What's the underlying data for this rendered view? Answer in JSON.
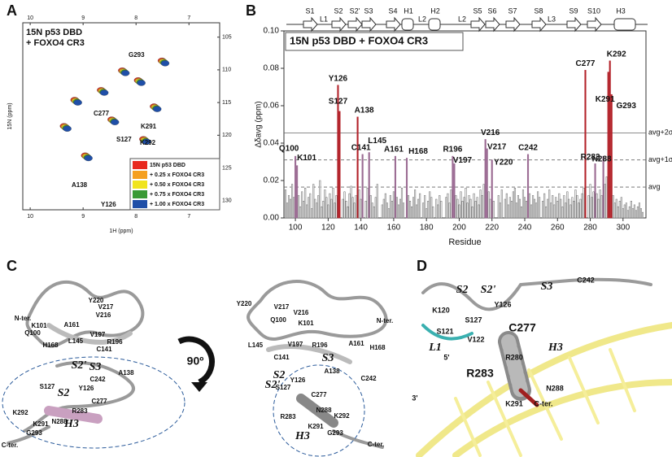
{
  "panel_letters": [
    "A",
    "B",
    "C",
    "D"
  ],
  "chart_data": [
    {
      "type": "scatter",
      "title_lines": [
        "15N p53 DBD",
        "+ FOXO4 CR3"
      ],
      "xlabel": "1H (ppm)",
      "ylabel": "15N (ppm)",
      "xlim": [
        10.14,
        6.42
      ],
      "ylim": [
        102.8,
        131.4
      ],
      "xticks": [
        10,
        9,
        8,
        7
      ],
      "yticks": [
        105,
        110,
        115,
        120,
        125,
        130
      ],
      "series": [
        {
          "name": "15N p53 DBD",
          "color": "#e8281e",
          "x": [
            8.26,
            7.96,
            7.51,
            8.66,
            9.16,
            8.46,
            7.86,
            9.36,
            8.96,
            7.66
          ],
          "y": [
            110.1,
            111.6,
            108.6,
            113.1,
            114.6,
            117.6,
            120.6,
            118.6,
            123.1,
            115.6
          ]
        },
        {
          "name": "+ 0.25 x FOXO4 CR3",
          "color": "#f5a020",
          "x": [
            8.245,
            7.945,
            7.495,
            8.645,
            9.145,
            8.445,
            7.845,
            9.345,
            8.945,
            7.645
          ],
          "y": [
            110.2,
            111.7,
            108.7,
            113.2,
            114.7,
            117.7,
            120.7,
            118.7,
            123.2,
            115.7
          ]
        },
        {
          "name": "+ 0.50 x FOXO4 CR3",
          "color": "#f0e41e",
          "x": [
            8.23,
            7.93,
            7.48,
            8.63,
            9.13,
            8.43,
            7.83,
            9.33,
            8.93,
            7.63
          ],
          "y": [
            110.3,
            111.8,
            108.8,
            113.3,
            114.8,
            117.8,
            120.8,
            118.8,
            123.3,
            115.8
          ]
        },
        {
          "name": "+ 0.75 x FOXO4 CR3",
          "color": "#3a9a35",
          "x": [
            8.215,
            7.915,
            7.465,
            8.615,
            9.115,
            8.415,
            7.815,
            9.315,
            8.915,
            7.615
          ],
          "y": [
            110.4,
            111.9,
            108.9,
            113.4,
            114.9,
            117.9,
            120.9,
            118.9,
            123.4,
            115.9
          ]
        },
        {
          "name": "+ 1.00 x FOXO4 CR3",
          "color": "#1f4fa8",
          "x": [
            8.2,
            7.9,
            7.45,
            8.6,
            9.1,
            8.4,
            7.8,
            9.3,
            8.9,
            7.6
          ],
          "y": [
            110.5,
            112,
            109,
            113.5,
            115,
            118,
            121,
            119,
            123.5,
            116
          ]
        }
      ],
      "peak_labels": [
        "G293",
        "C277",
        "K291",
        "K292",
        "S127",
        "A138",
        "Y126"
      ]
    },
    {
      "type": "bar",
      "title": "15N p53 DBD + FOXO4 CR3",
      "xlabel": "Residue",
      "ylabel": "Δδavg (ppm)",
      "xlim": [
        93,
        314
      ],
      "ylim": [
        0,
        0.1
      ],
      "xticks": [
        100,
        120,
        140,
        160,
        180,
        200,
        220,
        240,
        260,
        280,
        300
      ],
      "yticks": [
        {
          "value": 0,
          "label": "0.00"
        },
        0.02,
        0.04,
        0.06,
        0.08,
        {
          "value": 0.1,
          "label": "0.10"
        }
      ],
      "color": "#f2f2f2",
      "x": [
        94,
        95,
        96,
        97,
        98,
        99,
        100,
        101,
        102,
        103,
        104,
        105,
        106,
        107,
        108,
        109,
        110,
        111,
        112,
        113,
        114,
        115,
        116,
        117,
        118,
        119,
        120,
        121,
        122,
        123,
        124,
        125,
        126,
        127,
        128,
        129,
        130,
        131,
        132,
        133,
        134,
        135,
        136,
        137,
        138,
        139,
        140,
        141,
        142,
        143,
        144,
        145,
        146,
        147,
        148,
        149,
        150,
        151,
        152,
        153,
        154,
        155,
        156,
        157,
        158,
        159,
        160,
        161,
        162,
        163,
        164,
        165,
        166,
        167,
        168,
        169,
        170,
        171,
        172,
        173,
        174,
        175,
        176,
        177,
        178,
        179,
        180,
        181,
        182,
        183,
        184,
        185,
        186,
        187,
        188,
        189,
        190,
        191,
        192,
        193,
        194,
        195,
        196,
        197,
        198,
        199,
        200,
        201,
        202,
        203,
        204,
        205,
        206,
        207,
        208,
        209,
        210,
        211,
        212,
        213,
        214,
        215,
        216,
        217,
        218,
        219,
        220,
        221,
        222,
        223,
        224,
        225,
        226,
        227,
        228,
        229,
        230,
        231,
        232,
        233,
        234,
        235,
        236,
        237,
        238,
        239,
        240,
        241,
        242,
        243,
        244,
        245,
        246,
        247,
        248,
        249,
        250,
        251,
        252,
        253,
        254,
        255,
        256,
        257,
        258,
        259,
        260,
        261,
        262,
        263,
        264,
        265,
        266,
        267,
        268,
        269,
        270,
        271,
        272,
        273,
        274,
        275,
        276,
        277,
        278,
        279,
        280,
        281,
        282,
        283,
        284,
        285,
        286,
        287,
        288,
        289,
        290,
        291,
        292,
        293,
        294,
        295,
        296,
        297,
        298,
        299,
        300,
        301,
        302,
        303,
        304,
        305,
        306,
        307,
        308,
        309,
        310,
        311,
        312
      ],
      "values": [
        0.015,
        0.008,
        0.012,
        0.01,
        0.018,
        0.011,
        0.033,
        0.028,
        0.012,
        0.006,
        0.014,
        0.009,
        0.016,
        0.007,
        0.011,
        0.013,
        0.005,
        0.018,
        0.01,
        0.008,
        0.012,
        0.02,
        0.006,
        0.009,
        0.015,
        0.011,
        0.007,
        0.013,
        0.01,
        0.016,
        0.008,
        0.012,
        0.071,
        0.057,
        null,
        0.01,
        0.014,
        0.009,
        0.006,
        0.013,
        0.017,
        0.011,
        0.008,
        0.012,
        0.054,
        0.015,
        0.01,
        0.034,
        null,
        0.009,
        0.016,
        0.035,
        0.012,
        0.008,
        0.006,
        0.011,
        0.018,
        null,
        null,
        0.007,
        0.01,
        0.013,
        0.008,
        0.005,
        0.012,
        0.009,
        0.014,
        0.033,
        0.011,
        0.007,
        0.01,
        0.016,
        0.008,
        null,
        0.032,
        0.012,
        0.009,
        0.006,
        0.011,
        0.015,
        0.007,
        0.01,
        0.013,
        null,
        0.008,
        0.012,
        0.005,
        0.009,
        0.014,
        0.011,
        0.006,
        null,
        0.01,
        0.007,
        0.012,
        0.009,
        null,
        null,
        0.011,
        0.013,
        0.008,
        0.015,
        0.033,
        0.029,
        0.012,
        0.01,
        0.007,
        0.014,
        0.009,
        0.011,
        0.016,
        0.008,
        0.012,
        0.01,
        0.006,
        0.013,
        0.009,
        0.011,
        0.007,
        0.015,
        0.012,
        0.018,
        0.042,
        0.037,
        0.014,
        0.01,
        0.031,
        0.009,
        null,
        null,
        0.012,
        0.008,
        0.015,
        null,
        0.01,
        0.013,
        0.007,
        0.011,
        0.009,
        0.014,
        0.016,
        0.008,
        0.012,
        0.01,
        0.006,
        0.015,
        0.011,
        0.009,
        0.034,
        0.013,
        0.007,
        0.012,
        0.01,
        0.008,
        0.014,
        0.011,
        null,
        0.009,
        0.013,
        0.006,
        0.01,
        0.015,
        0.008,
        0.012,
        0.007,
        0.011,
        0.009,
        0.013,
        0.01,
        0.006,
        0.012,
        0.008,
        0.014,
        0.01,
        0.007,
        0.011,
        0.009,
        0.015,
        0.012,
        0.008,
        0.01,
        0.013,
        0.016,
        0.079,
        null,
        0.012,
        0.018,
        0.011,
        0.014,
        0.029,
        0.013,
        0.01,
        0.015,
        0.012,
        0.033,
        0.018,
        0.022,
        0.078,
        0.084,
        0.066,
        0.012,
        0.008,
        0.01,
        0.006,
        0.009,
        0.011,
        0.005,
        0.007,
        0.008,
        0.004,
        0.006,
        0.009,
        0.005,
        0.007,
        0.004,
        0.006,
        0.008,
        0.005,
        0.003
      ],
      "annotations": [
        {
          "label": "Q100",
          "x": 100,
          "color": "#9b6b93"
        },
        {
          "label": "K101",
          "x": 101,
          "color": "#9b6b93"
        },
        {
          "label": "Y126",
          "x": 126,
          "color": "#b3232a"
        },
        {
          "label": "S127",
          "x": 127,
          "color": "#b3232a"
        },
        {
          "label": "A138",
          "x": 138,
          "color": "#b3232a"
        },
        {
          "label": "C141",
          "x": 141,
          "color": "#9b6b93"
        },
        {
          "label": "L145",
          "x": 145,
          "color": "#9b6b93"
        },
        {
          "label": "A161",
          "x": 161,
          "color": "#9b6b93"
        },
        {
          "label": "H168",
          "x": 168,
          "color": "#9b6b93"
        },
        {
          "label": "R196",
          "x": 196,
          "color": "#9b6b93"
        },
        {
          "label": "V197",
          "x": 197,
          "color": "#9b6b93"
        },
        {
          "label": "V216",
          "x": 216,
          "color": "#9b6b93"
        },
        {
          "label": "V217",
          "x": 217,
          "color": "#9b6b93"
        },
        {
          "label": "Y220",
          "x": 220,
          "color": "#9b6b93"
        },
        {
          "label": "C242",
          "x": 242,
          "color": "#9b6b93"
        },
        {
          "label": "C277",
          "x": 277,
          "color": "#b3232a"
        },
        {
          "label": "R283",
          "x": 283,
          "color": "#9b6b93"
        },
        {
          "label": "N288",
          "x": 288,
          "color": "#9b6b93"
        },
        {
          "label": "K291",
          "x": 291,
          "color": "#b3232a"
        },
        {
          "label": "K292",
          "x": 292,
          "color": "#b3232a"
        },
        {
          "label": "G293",
          "x": 293,
          "color": "#b3232a"
        }
      ],
      "ref_lines": [
        {
          "value": 0.0455,
          "label": "avg+2σ"
        },
        {
          "value": 0.031,
          "label": "avg+1σ"
        },
        {
          "value": 0.0165,
          "label": "avg"
        }
      ],
      "secondary_structure": [
        "S1",
        "L1",
        "S2",
        "S2'",
        "S3",
        "S4",
        "H1",
        "L2",
        "H2",
        "L2",
        "S5",
        "S6",
        "S7",
        "S8",
        "L3",
        "S9",
        "S10",
        "H3"
      ]
    }
  ],
  "panel_c": {
    "left_labels": [
      "Y220",
      "V217",
      "V216",
      "N-ter.",
      "A161",
      "K101",
      "Q100",
      "V197",
      "R196",
      "L145",
      "C141",
      "H168",
      "S2'",
      "S3",
      "A138",
      "C242",
      "S127",
      "S2",
      "Y126",
      "R283",
      "C277",
      "K292",
      "K291",
      "N288",
      "G293",
      "H3",
      "C-ter."
    ],
    "right_labels": [
      "Y220",
      "V217",
      "V216",
      "Q100",
      "K101",
      "N-ter.",
      "L145",
      "V197",
      "R196",
      "A161",
      "H168",
      "C141",
      "S2",
      "S3",
      "A138",
      "C242",
      "S127",
      "Y126",
      "S2'",
      "C277",
      "N288",
      "R283",
      "K292",
      "K291",
      "H3",
      "G293",
      "C-ter."
    ],
    "rotation": "90º"
  },
  "panel_d": {
    "labels": [
      "S2",
      "S2'",
      "S3",
      "C242",
      "K120",
      "Y126",
      "S127",
      "S121",
      "V122",
      "C277",
      "L1",
      "H3",
      "5'",
      "R280",
      "R283",
      "N288",
      "3'",
      "K291",
      "C-ter."
    ]
  }
}
